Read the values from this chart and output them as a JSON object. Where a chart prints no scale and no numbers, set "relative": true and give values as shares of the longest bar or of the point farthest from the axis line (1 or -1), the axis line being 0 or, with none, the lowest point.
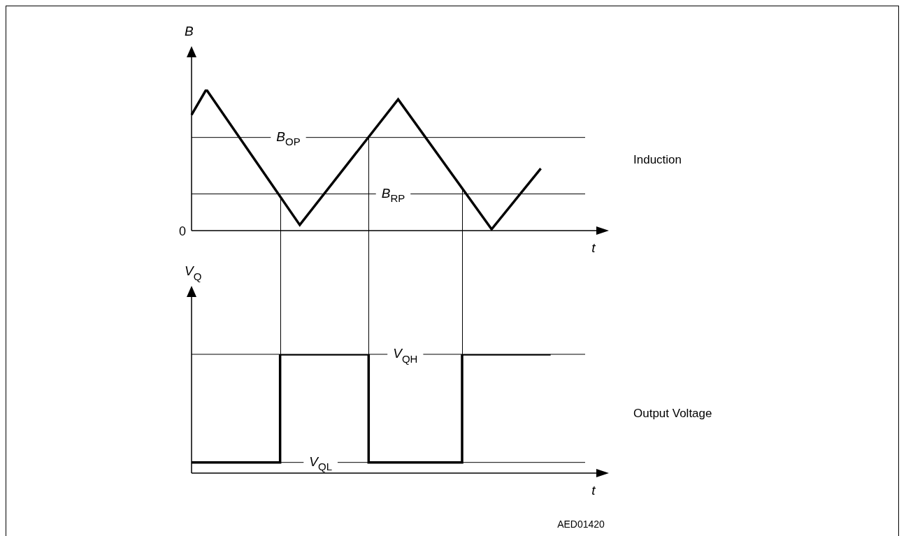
{
  "chart_data": [
    {
      "type": "line",
      "xlabel": "t",
      "ylabel": "B",
      "relative": true,
      "categories": [
        null,
        null,
        null,
        null,
        null,
        null,
        null,
        null,
        null,
        null,
        null,
        null,
        null,
        null,
        null,
        null,
        null,
        null,
        null,
        null,
        null,
        null,
        null,
        null,
        null,
        null,
        null,
        null,
        null,
        null,
        null,
        null,
        null,
        null,
        null,
        null,
        null,
        null,
        null,
        null,
        null,
        null,
        null,
        null,
        null,
        null,
        null,
        null,
        null,
        null,
        null,
        null,
        null,
        null,
        null,
        null,
        null,
        null,
        null,
        null,
        null,
        null,
        null,
        null,
        null,
        null,
        null,
        null,
        null,
        null,
        null,
        null,
        null,
        null,
        null,
        null,
        null,
        null,
        null,
        null,
        null,
        null,
        null
      ],
      "series": [
        {
          "color": "#000000",
          "values": [
            0.82,
            null,
            null,
            1,
            null,
            null,
            null,
            null,
            null,
            null,
            null,
            null,
            null,
            null,
            null,
            null,
            null,
            null,
            null,
            null,
            null,
            null,
            0.04,
            null,
            null,
            null,
            null,
            null,
            null,
            null,
            null,
            null,
            null,
            null,
            null,
            null,
            null,
            null,
            null,
            null,
            null,
            null,
            0.93,
            null,
            null,
            null,
            null,
            null,
            null,
            null,
            null,
            null,
            null,
            null,
            null,
            null,
            null,
            null,
            null,
            null,
            null,
            0.01,
            null,
            null,
            null,
            null,
            null,
            null,
            null,
            null,
            null,
            0.44,
            null,
            null,
            null,
            null,
            null,
            null,
            null,
            null,
            null,
            null,
            null
          ]
        }
      ],
      "ref_lines": [
        {
          "axis": "y",
          "value": 0.66,
          "label": "B$_{OP}$",
          "color": "#000000"
        },
        {
          "axis": "y",
          "value": 0.26,
          "label": "B$_{RP}$",
          "color": "#000000"
        }
      ],
      "annotations": [
        "0",
        "Induction"
      ]
    },
    {
      "type": "step",
      "xlabel": "t",
      "ylabel": "V$_{Q}$",
      "relative": true,
      "categories": [
        null,
        null,
        null,
        null,
        null,
        null,
        null,
        null,
        null,
        null,
        null,
        null,
        null,
        null,
        null,
        null,
        null,
        null,
        null,
        null,
        null,
        null,
        null,
        null,
        null,
        null,
        null,
        null,
        null,
        null,
        null,
        null,
        null,
        null,
        null,
        null,
        null,
        null,
        null,
        null,
        null,
        null,
        null,
        null,
        null,
        null,
        null,
        null,
        null,
        null,
        null,
        null,
        null,
        null,
        null,
        null,
        null,
        null,
        null,
        null,
        null,
        null,
        null,
        null,
        null,
        null,
        null,
        null,
        null,
        null,
        null,
        null,
        null,
        null,
        null,
        null,
        null,
        null,
        null,
        null,
        null,
        null,
        null
      ],
      "series": [
        {
          "color": "#000000",
          "values": [
            0.09,
            null,
            null,
            null,
            null,
            null,
            null,
            null,
            null,
            null,
            null,
            null,
            null,
            null,
            null,
            null,
            null,
            null,
            1,
            null,
            null,
            null,
            null,
            null,
            null,
            null,
            null,
            null,
            null,
            null,
            null,
            null,
            null,
            null,
            null,
            null,
            0.09,
            null,
            null,
            null,
            null,
            null,
            null,
            null,
            null,
            null,
            null,
            null,
            null,
            null,
            null,
            null,
            null,
            null,
            null,
            1,
            null,
            null,
            null,
            null,
            null,
            null,
            null,
            null,
            null,
            null,
            null,
            null,
            null,
            null,
            null,
            null,
            null,
            1,
            null,
            null,
            null,
            null,
            null,
            null,
            null,
            null,
            null
          ]
        }
      ],
      "ref_lines": [
        {
          "axis": "y",
          "value": 1,
          "label": "V$_{QH}$",
          "color": "#000000"
        },
        {
          "axis": "y",
          "value": 0.09,
          "label": "V$_{QL}$",
          "color": "#000000"
        }
      ],
      "annotations": [
        "Output Voltage",
        "AED01420"
      ]
    }
  ]
}
